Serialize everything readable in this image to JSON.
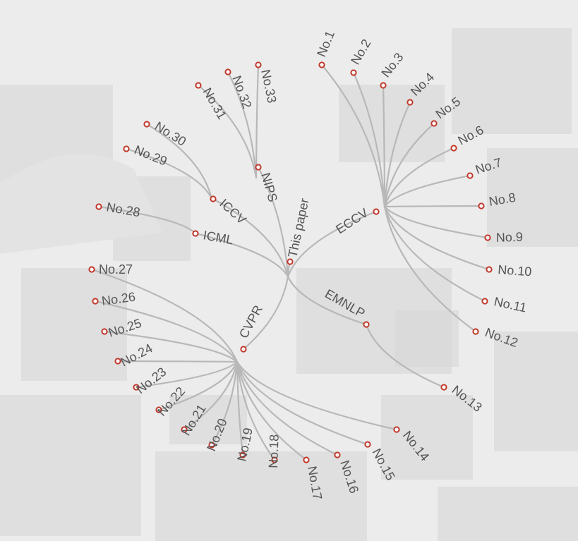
{
  "colors": {
    "node": "#c0392b",
    "edge": "#b8b8b8",
    "label": "#555555"
  },
  "root": {
    "id": "root",
    "label": "This paper"
  },
  "venues": [
    {
      "id": "v-nips",
      "label": "NIPS",
      "children": [
        "No.31",
        "No.32",
        "No.33"
      ]
    },
    {
      "id": "v-iccv",
      "label": "ICCV",
      "children": [
        "No.29",
        "No.30"
      ]
    },
    {
      "id": "v-icml",
      "label": "ICML",
      "children": [
        "No.28"
      ]
    },
    {
      "id": "v-eccv",
      "label": "ECCV",
      "children": [
        "No.1",
        "No.2",
        "No.3",
        "No.4",
        "No.5",
        "No.6",
        "No.7",
        "No.8",
        "No.9",
        "No.10",
        "No.11",
        "No.12"
      ]
    },
    {
      "id": "v-emnlp",
      "label": "EMNLP",
      "children": [
        "No.13"
      ]
    },
    {
      "id": "v-cvpr",
      "label": "CVPR",
      "children": [
        "No.14",
        "No.15",
        "No.16",
        "No.17",
        "No.18",
        "No.19",
        "No.20",
        "No.21",
        "No.22",
        "No.23",
        "No.24",
        "No.25",
        "No.26",
        "No.27"
      ]
    }
  ]
}
